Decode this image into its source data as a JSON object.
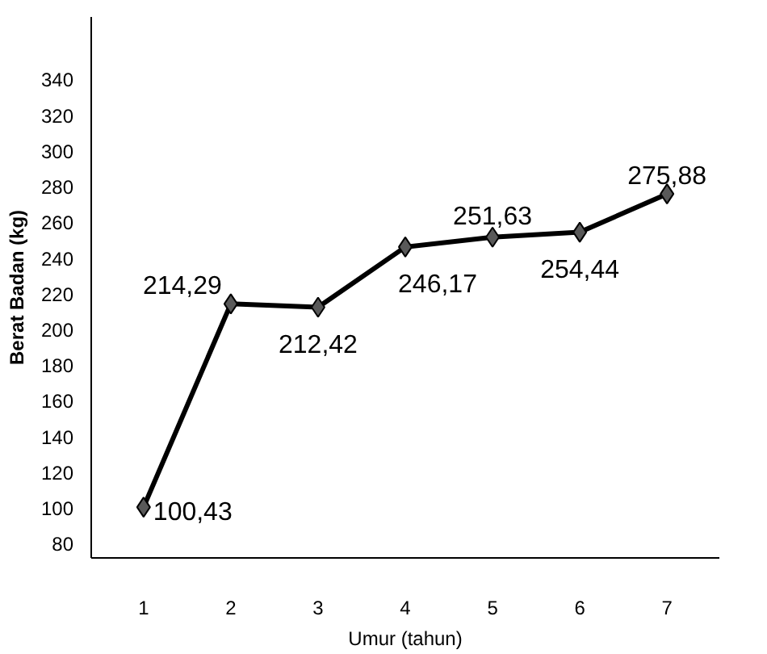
{
  "chart_data": {
    "type": "line",
    "xlabel": "Umur (tahun)",
    "ylabel": "Berat Badan (kg)",
    "categories": [
      "1",
      "2",
      "3",
      "4",
      "5",
      "6",
      "7"
    ],
    "series": [
      {
        "color": "#000000",
        "values": [
          100.43,
          214.29,
          212.42,
          246.17,
          251.63,
          254.44,
          275.88
        ],
        "value_labels": [
          "100,43",
          "214,29",
          "212,42",
          "246,17",
          "251,63",
          "254,44",
          "275,88"
        ]
      }
    ],
    "ylim": [
      72,
      375
    ],
    "yticks": [
      80,
      100,
      120,
      140,
      160,
      180,
      200,
      220,
      240,
      260,
      280,
      300,
      320,
      340
    ],
    "marker": "diamond",
    "line_style": "solid",
    "grid": false
  }
}
